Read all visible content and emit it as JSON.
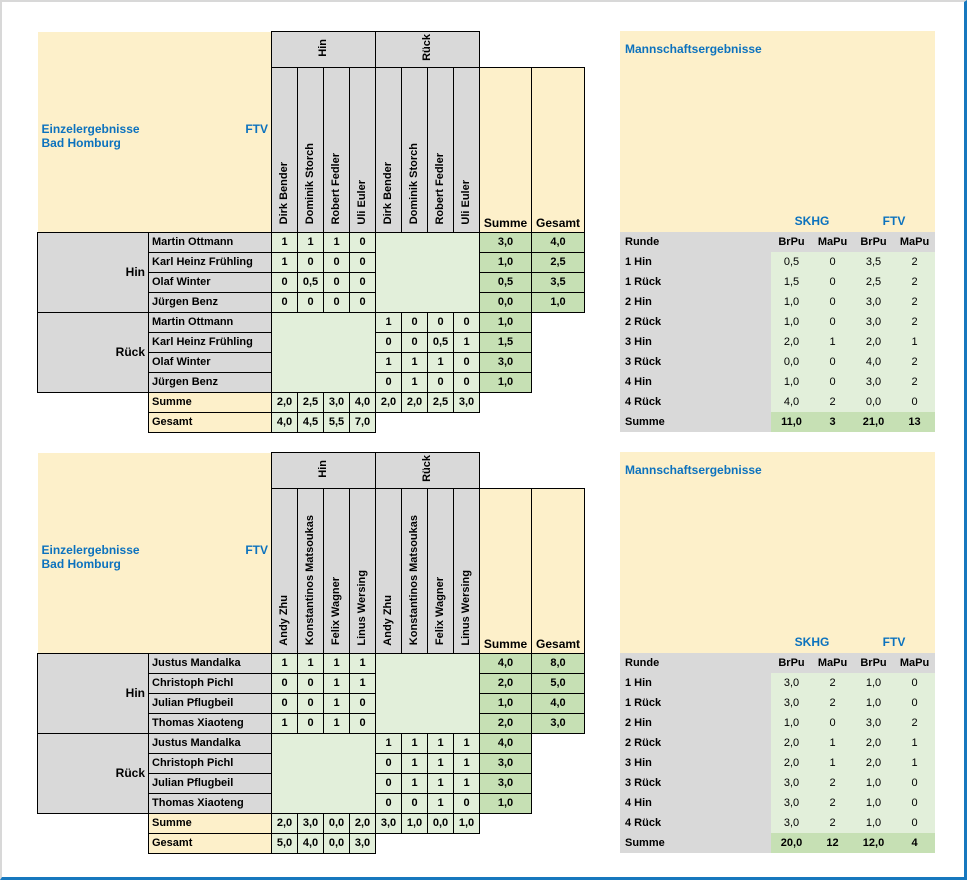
{
  "colors": {
    "accent_blue": "#0C72BE",
    "fill_yellow": "#FDF0CA",
    "fill_gray": "#D9D9D9",
    "green_light": "#E2EFDA",
    "green_dark": "#C6E0B4",
    "frame_blue": "#1778BE",
    "frame_gray": "#D8D8D8"
  },
  "sections": [
    {
      "individual": {
        "title": "Einzelergebnisse",
        "away_team": "FTV",
        "home_team": "Bad Homburg",
        "hin_label": "Hin",
        "rueck_label": "Rück",
        "summe_label": "Summe",
        "gesamt_label": "Gesamt",
        "away_players": [
          "Dirk Bender",
          "Dominik Storch",
          "Robert Fedler",
          "Uli Euler"
        ],
        "rows_hin": [
          {
            "name": "Martin Ottmann",
            "cells": [
              "1",
              "1",
              "1",
              "0"
            ],
            "summe": "3,0",
            "gesamt": "4,0"
          },
          {
            "name": "Karl Heinz Frühling",
            "cells": [
              "1",
              "0",
              "0",
              "0"
            ],
            "summe": "1,0",
            "gesamt": "2,5"
          },
          {
            "name": "Olaf Winter",
            "cells": [
              "0",
              "0,5",
              "0",
              "0"
            ],
            "summe": "0,5",
            "gesamt": "3,5"
          },
          {
            "name": "Jürgen Benz",
            "cells": [
              "0",
              "0",
              "0",
              "0"
            ],
            "summe": "0,0",
            "gesamt": "1,0"
          }
        ],
        "rows_rueck": [
          {
            "name": "Martin Ottmann",
            "cells": [
              "1",
              "0",
              "0",
              "0"
            ],
            "summe": "1,0"
          },
          {
            "name": "Karl Heinz Frühling",
            "cells": [
              "0",
              "0",
              "0,5",
              "1"
            ],
            "summe": "1,5"
          },
          {
            "name": "Olaf Winter",
            "cells": [
              "1",
              "1",
              "1",
              "0"
            ],
            "summe": "3,0"
          },
          {
            "name": "Jürgen Benz",
            "cells": [
              "0",
              "1",
              "0",
              "0"
            ],
            "summe": "1,0"
          }
        ],
        "col_summe": [
          "2,0",
          "2,5",
          "3,0",
          "4,0",
          "2,0",
          "2,0",
          "2,5",
          "3,0"
        ],
        "col_gesamt": [
          "4,0",
          "4,5",
          "5,5",
          "7,0"
        ]
      },
      "team": {
        "title": "Mannschaftsergebnisse",
        "left_team": "SKHG",
        "right_team": "FTV",
        "runde_label": "Runde",
        "point_headers": [
          "BrPu",
          "MaPu",
          "BrPu",
          "MaPu"
        ],
        "rows": [
          {
            "label": "1 Hin",
            "values": [
              "0,5",
              "0",
              "3,5",
              "2"
            ]
          },
          {
            "label": "1 Rück",
            "values": [
              "1,5",
              "0",
              "2,5",
              "2"
            ]
          },
          {
            "label": "2 Hin",
            "values": [
              "1,0",
              "0",
              "3,0",
              "2"
            ]
          },
          {
            "label": "2 Rück",
            "values": [
              "1,0",
              "0",
              "3,0",
              "2"
            ]
          },
          {
            "label": "3 Hin",
            "values": [
              "2,0",
              "1",
              "2,0",
              "1"
            ]
          },
          {
            "label": "3 Rück",
            "values": [
              "0,0",
              "0",
              "4,0",
              "2"
            ]
          },
          {
            "label": "4 Hin",
            "values": [
              "1,0",
              "0",
              "3,0",
              "2"
            ]
          },
          {
            "label": "4 Rück",
            "values": [
              "4,0",
              "2",
              "0,0",
              "0"
            ]
          }
        ],
        "summe_label": "Summe",
        "summe_values": [
          "11,0",
          "3",
          "21,0",
          "13"
        ]
      }
    },
    {
      "individual": {
        "title": "Einzelergebnisse",
        "away_team": "FTV",
        "home_team": "Bad Homburg",
        "hin_label": "Hin",
        "rueck_label": "Rück",
        "summe_label": "Summe",
        "gesamt_label": "Gesamt",
        "away_players": [
          "Andy Zhu",
          "Konstantinos Matsoukas",
          "Felix Wagner",
          "Linus Wersing"
        ],
        "rows_hin": [
          {
            "name": "Justus Mandalka",
            "cells": [
              "1",
              "1",
              "1",
              "1"
            ],
            "summe": "4,0",
            "gesamt": "8,0"
          },
          {
            "name": "Christoph Pichl",
            "cells": [
              "0",
              "0",
              "1",
              "1"
            ],
            "summe": "2,0",
            "gesamt": "5,0"
          },
          {
            "name": "Julian Pflugbeil",
            "cells": [
              "0",
              "0",
              "1",
              "0"
            ],
            "summe": "1,0",
            "gesamt": "4,0"
          },
          {
            "name": "Thomas Xiaoteng",
            "cells": [
              "1",
              "0",
              "1",
              "0"
            ],
            "summe": "2,0",
            "gesamt": "3,0"
          }
        ],
        "rows_rueck": [
          {
            "name": "Justus Mandalka",
            "cells": [
              "1",
              "1",
              "1",
              "1"
            ],
            "summe": "4,0"
          },
          {
            "name": "Christoph Pichl",
            "cells": [
              "0",
              "1",
              "1",
              "1"
            ],
            "summe": "3,0"
          },
          {
            "name": "Julian Pflugbeil",
            "cells": [
              "0",
              "1",
              "1",
              "1"
            ],
            "summe": "3,0"
          },
          {
            "name": "Thomas Xiaoteng",
            "cells": [
              "0",
              "0",
              "1",
              "0"
            ],
            "summe": "1,0"
          }
        ],
        "col_summe": [
          "2,0",
          "3,0",
          "0,0",
          "2,0",
          "3,0",
          "1,0",
          "0,0",
          "1,0"
        ],
        "col_gesamt": [
          "5,0",
          "4,0",
          "0,0",
          "3,0"
        ]
      },
      "team": {
        "title": "Mannschaftsergebnisse",
        "left_team": "SKHG",
        "right_team": "FTV",
        "runde_label": "Runde",
        "point_headers": [
          "BrPu",
          "MaPu",
          "BrPu",
          "MaPu"
        ],
        "rows": [
          {
            "label": "1 Hin",
            "values": [
              "3,0",
              "2",
              "1,0",
              "0"
            ]
          },
          {
            "label": "1 Rück",
            "values": [
              "3,0",
              "2",
              "1,0",
              "0"
            ]
          },
          {
            "label": "2 Hin",
            "values": [
              "1,0",
              "0",
              "3,0",
              "2"
            ]
          },
          {
            "label": "2 Rück",
            "values": [
              "2,0",
              "1",
              "2,0",
              "1"
            ]
          },
          {
            "label": "3 Hin",
            "values": [
              "2,0",
              "1",
              "2,0",
              "1"
            ]
          },
          {
            "label": "3 Rück",
            "values": [
              "3,0",
              "2",
              "1,0",
              "0"
            ]
          },
          {
            "label": "4 Hin",
            "values": [
              "3,0",
              "2",
              "1,0",
              "0"
            ]
          },
          {
            "label": "4 Rück",
            "values": [
              "3,0",
              "2",
              "1,0",
              "0"
            ]
          }
        ],
        "summe_label": "Summe",
        "summe_values": [
          "20,0",
          "12",
          "12,0",
          "4"
        ]
      }
    }
  ]
}
